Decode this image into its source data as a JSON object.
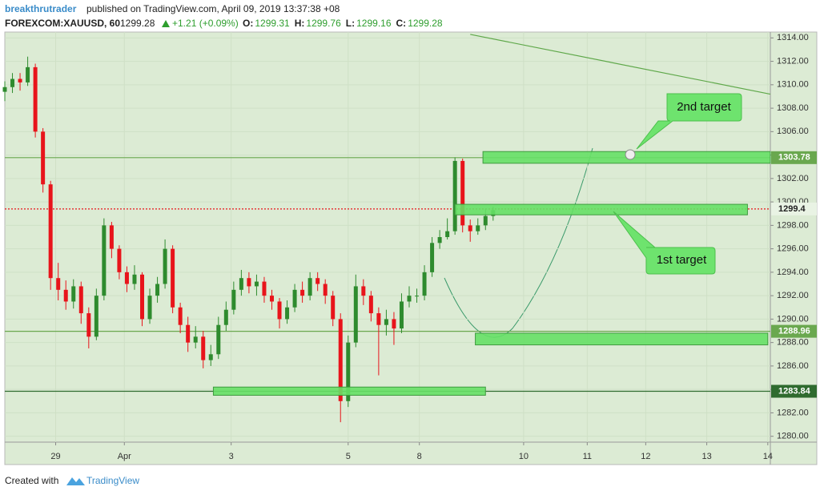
{
  "header": {
    "author": "breakthrutrader",
    "published": "published on TradingView.com, April 09, 2019 13:37:38 +08",
    "symbol": "FOREXCOM:XAUUSD, 60",
    "last": "1299.28",
    "change": "+1.21 (+0.09%)",
    "ohlc": [
      {
        "label": "O:",
        "value": "1299.31"
      },
      {
        "label": "H:",
        "value": "1299.76"
      },
      {
        "label": "L:",
        "value": "1299.16"
      },
      {
        "label": "C:",
        "value": "1299.28"
      }
    ]
  },
  "chart_data": {
    "type": "candlestick",
    "up_color": "#2e8b2e",
    "down_color": "#e8141b",
    "grid": true,
    "x": [
      0,
      3,
      6,
      9,
      12,
      15,
      18,
      21,
      24,
      27,
      30,
      33,
      36,
      39,
      42,
      45,
      48,
      51,
      54,
      57,
      60,
      63,
      66,
      69,
      72,
      75,
      78,
      81,
      84,
      87,
      90,
      93,
      96,
      99,
      102,
      105,
      108,
      111,
      114,
      117,
      120,
      123,
      126,
      129,
      132,
      135,
      138,
      141,
      144,
      147,
      150,
      153,
      156,
      159,
      162,
      165,
      168,
      171,
      174,
      177,
      180,
      183,
      186,
      189,
      192
    ],
    "open": [
      1309.4,
      1309.8,
      1310.5,
      1310.2,
      1311.5,
      1306,
      1301.5,
      1293.5,
      1292.5,
      1291.5,
      1292.8,
      1290.5,
      1288.5,
      1292,
      1298,
      1296,
      1294,
      1293,
      1293.8,
      1290,
      1292,
      1293,
      1296,
      1291,
      1289.5,
      1288,
      1288.5,
      1286.5,
      1287,
      1289.5,
      1290.8,
      1292.5,
      1293.5,
      1292.8,
      1293.2,
      1292,
      1291.5,
      1290,
      1291,
      1292.5,
      1292,
      1293.5,
      1293,
      1292,
      1290,
      1283,
      1288,
      1292.8,
      1292,
      1290.5,
      1289.5,
      1290,
      1289.2,
      1291.5,
      1292,
      1292,
      1294,
      1296.5,
      1297,
      1297.5,
      1303.5,
      1298,
      1297.5,
      1298,
      1298.8
    ],
    "high": [
      1310.3,
      1311,
      1311,
      1312.4,
      1311.8,
      1306.3,
      1301.8,
      1294.8,
      1293.3,
      1293.4,
      1293.2,
      1291,
      1292.6,
      1298.6,
      1298.3,
      1296.3,
      1294.5,
      1294.6,
      1294,
      1292.6,
      1293.6,
      1296.8,
      1296.3,
      1291.4,
      1290.2,
      1289.4,
      1289,
      1287.8,
      1290.2,
      1291.5,
      1293.2,
      1294.2,
      1294,
      1293.8,
      1293.6,
      1292.5,
      1291.8,
      1291.6,
      1293,
      1293.2,
      1294,
      1294,
      1293.4,
      1292.4,
      1290.5,
      1288.6,
      1293.8,
      1293.4,
      1292.4,
      1291,
      1290.8,
      1290.6,
      1292.2,
      1292.8,
      1292.6,
      1294.6,
      1297,
      1297.6,
      1298.6,
      1303.8,
      1303.7,
      1298.5,
      1298.6,
      1299.4,
      1299.6
    ],
    "low": [
      1308.6,
      1309.3,
      1309.5,
      1309.9,
      1305.5,
      1300.8,
      1292.5,
      1291.6,
      1290.8,
      1290.9,
      1289.6,
      1287.5,
      1288.2,
      1291.6,
      1295.2,
      1293.4,
      1292.3,
      1292.5,
      1289.4,
      1289.6,
      1291.4,
      1292.6,
      1290.5,
      1288.8,
      1287.2,
      1287.5,
      1285.8,
      1286,
      1286.6,
      1289,
      1290.4,
      1292,
      1292.2,
      1292,
      1291.4,
      1290.8,
      1289.2,
      1289.6,
      1290.6,
      1291.4,
      1291.6,
      1292.4,
      1291.3,
      1289.4,
      1281.2,
      1282.5,
      1287.6,
      1291.2,
      1289.8,
      1285.2,
      1288.6,
      1287.8,
      1288.8,
      1291,
      1291.4,
      1291.6,
      1293.6,
      1296,
      1296.8,
      1297.2,
      1297.4,
      1296.6,
      1297.2,
      1297.6,
      1298.4
    ],
    "close": [
      1309.8,
      1310.5,
      1310.2,
      1311.5,
      1306,
      1301.5,
      1293.5,
      1292.5,
      1291.5,
      1292.8,
      1290.5,
      1288.5,
      1292,
      1298,
      1296,
      1294,
      1293,
      1293.8,
      1290,
      1292,
      1293,
      1296,
      1291,
      1289.5,
      1288,
      1288.5,
      1286.5,
      1287,
      1289.5,
      1290.8,
      1292.5,
      1293.5,
      1292.8,
      1293.2,
      1292,
      1291.5,
      1290,
      1291,
      1292.5,
      1292,
      1293.5,
      1293,
      1292,
      1290,
      1283,
      1288,
      1292.8,
      1292,
      1290.5,
      1289.5,
      1290,
      1289.2,
      1291.5,
      1292,
      1292,
      1294,
      1296.5,
      1297,
      1297.5,
      1303.5,
      1298,
      1297.5,
      1298,
      1298.8,
      1299.3
    ],
    "xlim": [
      0,
      301
    ],
    "xticks": [
      {
        "value": 20,
        "label": "29"
      },
      {
        "value": 47,
        "label": "Apr"
      },
      {
        "value": 89,
        "label": "3"
      },
      {
        "value": 135,
        "label": "5"
      },
      {
        "value": 163,
        "label": "8"
      },
      {
        "value": 204,
        "label": "10"
      },
      {
        "value": 229,
        "label": "11"
      },
      {
        "value": 252,
        "label": "12"
      },
      {
        "value": 276,
        "label": "13"
      },
      {
        "value": 300,
        "label": "14"
      }
    ],
    "ylim": [
      1279.5,
      1314.5
    ],
    "yticks": [
      {
        "value": 1280,
        "label": "1280.00"
      },
      {
        "value": 1282,
        "label": "1282.00"
      },
      {
        "value": 1284,
        "label": "1284.00"
      },
      {
        "value": 1286,
        "label": "1286.00"
      },
      {
        "value": 1288,
        "label": "1288.00"
      },
      {
        "value": 1290,
        "label": "1290.00"
      },
      {
        "value": 1292,
        "label": "1292.00"
      },
      {
        "value": 1294,
        "label": "1294.00"
      },
      {
        "value": 1296,
        "label": "1296.00"
      },
      {
        "value": 1298,
        "label": "1298.00"
      },
      {
        "value": 1300,
        "label": "1300.00"
      },
      {
        "value": 1302,
        "label": "1302.00"
      },
      {
        "value": 1304,
        "label": "1304.00"
      },
      {
        "value": 1306,
        "label": "1306.00"
      },
      {
        "value": 1308,
        "label": "1308.00"
      },
      {
        "value": 1310,
        "label": "1310.00"
      },
      {
        "value": 1312,
        "label": "1312.00"
      },
      {
        "value": 1314,
        "label": "1314.00"
      }
    ],
    "price_lines": [
      {
        "value": 1303.78,
        "color": "#6aa84f"
      },
      {
        "value": 1299.4,
        "color": "#e8141b"
      },
      {
        "value": 1288.96,
        "color": "#6aa84f"
      },
      {
        "value": 1283.84,
        "color": "#2f6b2f"
      }
    ],
    "zones": [
      {
        "x": [
          188,
          301
        ],
        "y": [
          1303.3,
          1304.3
        ]
      },
      {
        "x": [
          177,
          292
        ],
        "y": [
          1298.9,
          1299.8
        ]
      },
      {
        "x": [
          185,
          300
        ],
        "y": [
          1287.8,
          1288.8
        ]
      },
      {
        "x": [
          82,
          189
        ],
        "y": [
          1283.5,
          1284.2
        ]
      }
    ],
    "trendline": {
      "x": [
        183,
        301
      ],
      "y": [
        1314.3,
        1309.2
      ]
    },
    "annotations": [
      "2nd target",
      "1st target"
    ]
  },
  "footer": {
    "created": "Created with",
    "brand": "TradingView"
  }
}
